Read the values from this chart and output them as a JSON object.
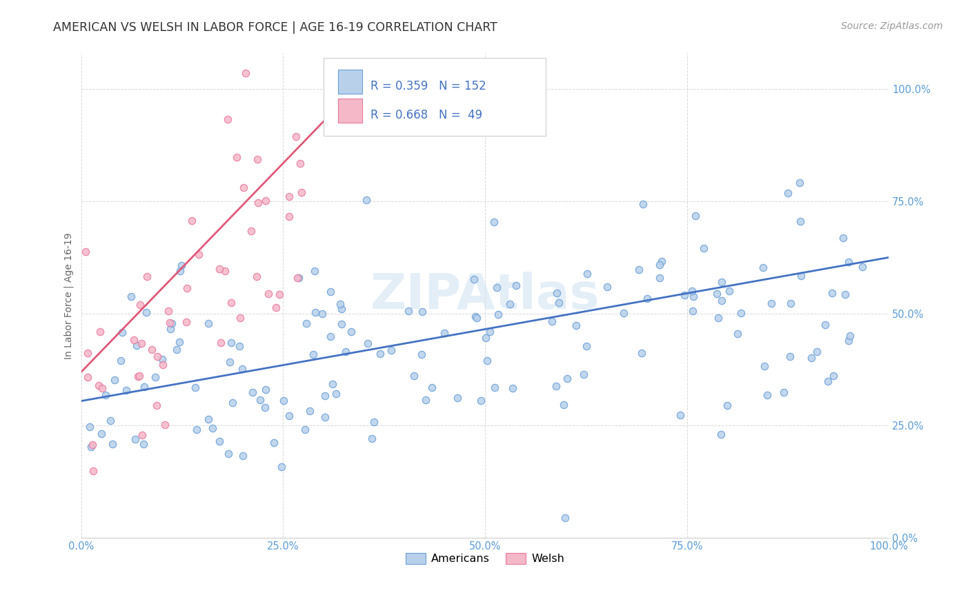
{
  "title": "AMERICAN VS WELSH IN LABOR FORCE | AGE 16-19 CORRELATION CHART",
  "source": "Source: ZipAtlas.com",
  "ylabel": "In Labor Force | Age 16-19",
  "xlim": [
    0.0,
    1.0
  ],
  "ylim": [
    0.0,
    1.08
  ],
  "xticks": [
    0.0,
    0.25,
    0.5,
    0.75,
    1.0
  ],
  "yticks": [
    0.0,
    0.25,
    0.5,
    0.75,
    1.0
  ],
  "xticklabels": [
    "0.0%",
    "25.0%",
    "50.0%",
    "75.0%",
    "100.0%"
  ],
  "yticklabels": [
    "0.0%",
    "25.0%",
    "50.0%",
    "75.0%",
    "100.0%"
  ],
  "american_fill_color": "#b8d0ea",
  "american_edge_color": "#6a9fd8",
  "welsh_fill_color": "#f5b8c8",
  "welsh_edge_color": "#e878a0",
  "american_line_color": "#4472c4",
  "welsh_line_color": "#e05878",
  "tick_color": "#5b9bd5",
  "background_color": "#ffffff",
  "watermark": "ZIPAtlas",
  "watermark_color": "#c8dff0",
  "legend_R_am": "0.359",
  "legend_N_am": "152",
  "legend_R_w": "0.668",
  "legend_N_w": "49",
  "legend_text_color": "#4472c4",
  "legend_text_color_welsh": "#e05878",
  "american_line_x0": 0.0,
  "american_line_x1": 1.0,
  "american_line_y0": 0.305,
  "american_line_y1": 0.625,
  "welsh_line_x0": 0.0,
  "welsh_line_x1": 0.36,
  "welsh_line_y0": 0.37,
  "welsh_line_y1": 1.04,
  "title_fontsize": 12.5,
  "axis_label_fontsize": 10,
  "tick_fontsize": 10.5,
  "source_fontsize": 10,
  "dot_size": 55,
  "dot_linewidth": 0.9,
  "dot_alpha": 0.85
}
